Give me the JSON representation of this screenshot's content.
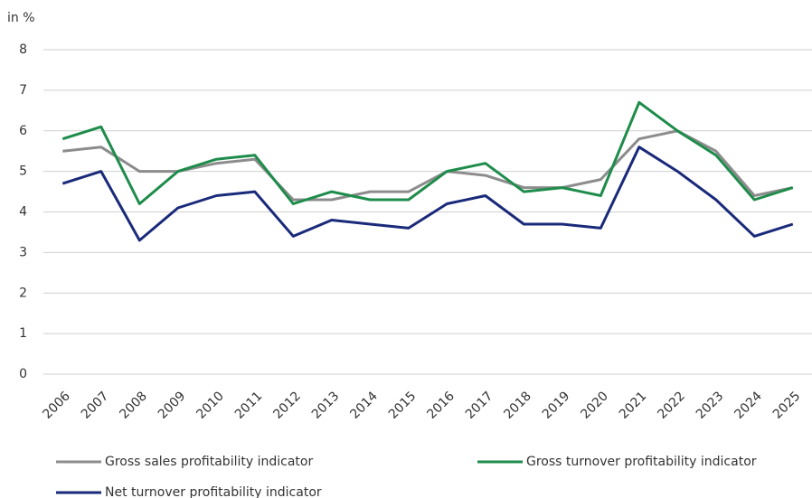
{
  "chart_data": {
    "type": "line",
    "y_label": "in %",
    "categories": [
      "2006",
      "2007",
      "2008",
      "2009",
      "2010",
      "2011",
      "2012",
      "2013",
      "2014",
      "2015",
      "2016",
      "2017",
      "2018",
      "2019",
      "2020",
      "2021",
      "2022",
      "2023",
      "2024",
      "2025"
    ],
    "series": [
      {
        "name": "Gross sales profitability indicator",
        "color": "#8c8c8c",
        "values": [
          5.5,
          5.6,
          5.0,
          5.0,
          5.2,
          5.3,
          4.3,
          4.3,
          4.5,
          4.5,
          5.0,
          4.9,
          4.6,
          4.6,
          4.8,
          5.8,
          6.0,
          5.5,
          4.4,
          4.6
        ]
      },
      {
        "name": "Gross turnover profitability indicator",
        "color": "#1e8c4b",
        "values": [
          5.8,
          6.1,
          4.2,
          5.0,
          5.3,
          5.4,
          4.2,
          4.5,
          4.3,
          4.3,
          5.0,
          5.2,
          4.5,
          4.6,
          4.4,
          6.7,
          6.0,
          5.4,
          4.3,
          4.6
        ]
      },
      {
        "name": "Net turnover profitability indicator",
        "color": "#1a2a7a",
        "values": [
          4.7,
          5.0,
          3.3,
          4.1,
          4.4,
          4.5,
          3.4,
          3.8,
          3.7,
          3.6,
          4.2,
          4.4,
          3.7,
          3.7,
          3.6,
          5.6,
          5.0,
          4.3,
          3.4,
          3.7
        ]
      }
    ],
    "ylim": [
      0,
      8
    ],
    "yticks": [
      0,
      1,
      2,
      3,
      4,
      5,
      6,
      7,
      8
    ],
    "grid": true,
    "legend": "bottom"
  }
}
